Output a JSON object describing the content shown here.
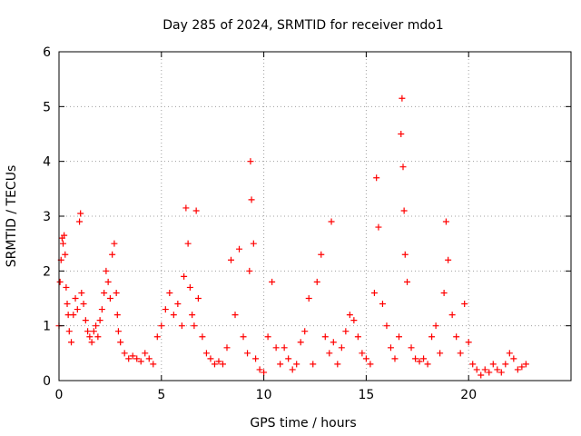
{
  "chart_data": {
    "type": "scatter",
    "title": "Day 285 of 2024, SRMTID for receiver mdo1",
    "xlabel": "GPS time / hours",
    "ylabel": "SRMTID / TECUs",
    "xlim": [
      0,
      25
    ],
    "ylim": [
      0,
      6
    ],
    "xticks": [
      0,
      5,
      10,
      15,
      20
    ],
    "yticks": [
      0,
      1,
      2,
      3,
      4,
      5,
      6
    ],
    "grid": true,
    "marker": "+",
    "color": "#ff0000",
    "series": [
      {
        "name": "SRMTID",
        "x": [
          0.0,
          0.05,
          0.1,
          0.15,
          0.2,
          0.25,
          0.3,
          0.35,
          0.4,
          0.45,
          0.5,
          0.6,
          0.7,
          0.8,
          0.9,
          1.0,
          1.05,
          1.1,
          1.2,
          1.3,
          1.4,
          1.5,
          1.6,
          1.7,
          1.8,
          1.9,
          2.0,
          2.1,
          2.2,
          2.3,
          2.4,
          2.5,
          2.6,
          2.7,
          2.8,
          2.85,
          2.9,
          3.0,
          3.2,
          3.4,
          3.6,
          3.8,
          4.0,
          4.2,
          4.4,
          4.6,
          4.8,
          5.0,
          5.2,
          5.4,
          5.6,
          5.8,
          6.0,
          6.1,
          6.2,
          6.3,
          6.4,
          6.5,
          6.6,
          6.7,
          6.8,
          7.0,
          7.2,
          7.4,
          7.6,
          7.8,
          8.0,
          8.2,
          8.4,
          8.6,
          8.8,
          9.0,
          9.2,
          9.3,
          9.35,
          9.4,
          9.5,
          9.6,
          9.8,
          10.0,
          10.2,
          10.4,
          10.6,
          10.8,
          11.0,
          11.2,
          11.4,
          11.6,
          11.8,
          12.0,
          12.2,
          12.4,
          12.6,
          12.8,
          13.0,
          13.2,
          13.3,
          13.4,
          13.6,
          13.8,
          14.0,
          14.2,
          14.4,
          14.6,
          14.8,
          15.0,
          15.2,
          15.4,
          15.5,
          15.6,
          15.8,
          16.0,
          16.2,
          16.4,
          16.6,
          16.7,
          16.75,
          16.8,
          16.85,
          16.9,
          17.0,
          17.2,
          17.4,
          17.6,
          17.8,
          18.0,
          18.2,
          18.4,
          18.6,
          18.8,
          18.9,
          19.0,
          19.2,
          19.4,
          19.6,
          19.8,
          20.0,
          20.2,
          20.4,
          20.6,
          20.8,
          21.0,
          21.2,
          21.4,
          21.6,
          21.8,
          22.0,
          22.2,
          22.4,
          22.6,
          22.8
        ],
        "y": [
          1.0,
          1.8,
          2.2,
          2.6,
          2.5,
          2.65,
          2.3,
          1.7,
          1.4,
          1.2,
          0.9,
          0.7,
          1.2,
          1.5,
          1.3,
          2.9,
          3.05,
          1.6,
          1.4,
          1.1,
          0.9,
          0.8,
          0.7,
          0.9,
          1.0,
          0.8,
          1.1,
          1.3,
          1.6,
          2.0,
          1.8,
          1.5,
          2.3,
          2.5,
          1.6,
          1.2,
          0.9,
          0.7,
          0.5,
          0.4,
          0.45,
          0.4,
          0.35,
          0.5,
          0.4,
          0.3,
          0.8,
          1.0,
          1.3,
          1.6,
          1.2,
          1.4,
          1.0,
          1.9,
          3.15,
          2.5,
          1.7,
          1.2,
          1.0,
          3.1,
          1.5,
          0.8,
          0.5,
          0.4,
          0.3,
          0.35,
          0.3,
          0.6,
          2.2,
          1.2,
          2.4,
          0.8,
          0.5,
          2.0,
          4.0,
          3.3,
          2.5,
          0.4,
          0.2,
          0.15,
          0.8,
          1.8,
          0.6,
          0.3,
          0.6,
          0.4,
          0.2,
          0.3,
          0.7,
          0.9,
          1.5,
          0.3,
          1.8,
          2.3,
          0.8,
          0.5,
          2.9,
          0.7,
          0.3,
          0.6,
          0.9,
          1.2,
          1.1,
          0.8,
          0.5,
          0.4,
          0.3,
          1.6,
          3.7,
          2.8,
          1.4,
          1.0,
          0.6,
          0.4,
          0.8,
          4.5,
          5.15,
          3.9,
          3.1,
          2.3,
          1.8,
          0.6,
          0.4,
          0.35,
          0.4,
          0.3,
          0.8,
          1.0,
          0.5,
          1.6,
          2.9,
          2.2,
          1.2,
          0.8,
          0.5,
          1.4,
          0.7,
          0.3,
          0.2,
          0.1,
          0.2,
          0.15,
          0.3,
          0.2,
          0.15,
          0.3,
          0.5,
          0.4,
          0.2,
          0.25,
          0.3
        ]
      }
    ]
  }
}
